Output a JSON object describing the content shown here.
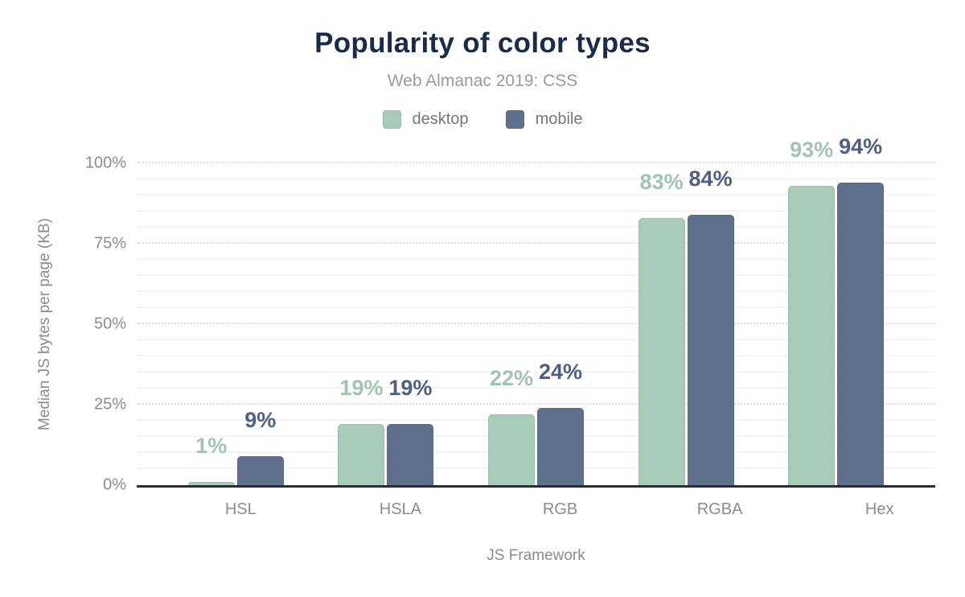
{
  "chart_data": {
    "type": "bar",
    "title": "Popularity of color types",
    "subtitle": "Web Almanac 2019: CSS",
    "xlabel": "JS Framework",
    "ylabel": "Median JS bytes per page (KB)",
    "categories": [
      "HSL",
      "HSLA",
      "RGB",
      "RGBA",
      "Hex"
    ],
    "series": [
      {
        "name": "desktop",
        "color": "#a8cab8",
        "label_color": "#a1c4b1",
        "values": [
          1,
          19,
          22,
          83,
          93
        ],
        "labels": [
          "1%",
          "19%",
          "22%",
          "83%",
          "93%"
        ]
      },
      {
        "name": "mobile",
        "color": "#5f708c",
        "label_color": "#4e5f82",
        "values": [
          9,
          19,
          24,
          84,
          94
        ],
        "labels": [
          "9%",
          "19%",
          "24%",
          "84%",
          "94%"
        ]
      }
    ],
    "ylim": [
      0,
      100
    ],
    "yticks": [
      {
        "value": 0,
        "label": "0%"
      },
      {
        "value": 25,
        "label": "25%"
      },
      {
        "value": 50,
        "label": "50%"
      },
      {
        "value": 75,
        "label": "75%"
      },
      {
        "value": 100,
        "label": "100%"
      }
    ],
    "minor_grid_step": 5,
    "grid": true,
    "legend_position": "top",
    "colors": {
      "title": "#1a2b49",
      "subtitle": "#9b9b9b",
      "legend_text": "#777777",
      "tick_text": "#8c8c8c",
      "axis_line": "#2d2d2d",
      "major_grid": "#e0e0e0",
      "minor_grid": "#f4f4f4"
    }
  }
}
